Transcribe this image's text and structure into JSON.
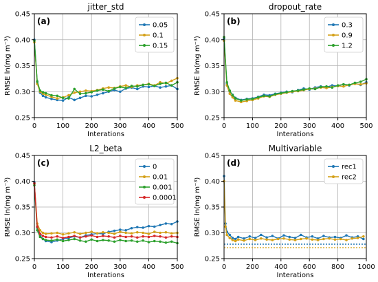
{
  "chart_data": [
    {
      "type": "line",
      "title": "jitter_std",
      "panel_label": "(a)",
      "xlabel": "Interations",
      "ylabel": "RMSE ln(mg m⁻³)",
      "xlim": [
        0,
        500
      ],
      "ylim": [
        0.25,
        0.45
      ],
      "xticks": [
        0,
        100,
        200,
        300,
        400,
        500
      ],
      "yticks": [
        0.25,
        0.3,
        0.35,
        0.4,
        0.45
      ],
      "grid": true,
      "legend_position": "top-right",
      "series": [
        {
          "name": "0.05",
          "color": "#1f77b4",
          "x": [
            0,
            10,
            20,
            30,
            40,
            60,
            80,
            100,
            120,
            140,
            160,
            180,
            200,
            220,
            240,
            260,
            280,
            300,
            320,
            340,
            360,
            380,
            400,
            420,
            440,
            460,
            480,
            500
          ],
          "y": [
            0.4,
            0.318,
            0.298,
            0.292,
            0.289,
            0.286,
            0.284,
            0.283,
            0.289,
            0.284,
            0.288,
            0.292,
            0.291,
            0.294,
            0.297,
            0.3,
            0.303,
            0.3,
            0.306,
            0.308,
            0.305,
            0.31,
            0.309,
            0.311,
            0.308,
            0.31,
            0.312,
            0.305
          ]
        },
        {
          "name": "0.1",
          "color": "#d4a017",
          "x": [
            0,
            10,
            20,
            30,
            40,
            60,
            80,
            100,
            120,
            140,
            160,
            180,
            200,
            220,
            240,
            260,
            280,
            300,
            320,
            340,
            360,
            380,
            400,
            420,
            440,
            460,
            480,
            500
          ],
          "y": [
            0.395,
            0.315,
            0.3,
            0.296,
            0.294,
            0.29,
            0.287,
            0.289,
            0.293,
            0.298,
            0.3,
            0.302,
            0.301,
            0.303,
            0.306,
            0.308,
            0.307,
            0.31,
            0.312,
            0.309,
            0.312,
            0.313,
            0.315,
            0.312,
            0.318,
            0.316,
            0.321,
            0.326
          ]
        },
        {
          "name": "0.15",
          "color": "#2ca02c",
          "x": [
            0,
            10,
            20,
            30,
            40,
            60,
            80,
            100,
            120,
            140,
            160,
            180,
            200,
            220,
            240,
            260,
            280,
            300,
            320,
            340,
            360,
            380,
            400,
            420,
            440,
            460,
            480,
            500
          ],
          "y": [
            0.398,
            0.32,
            0.302,
            0.299,
            0.297,
            0.293,
            0.292,
            0.288,
            0.287,
            0.305,
            0.296,
            0.297,
            0.299,
            0.302,
            0.304,
            0.301,
            0.306,
            0.309,
            0.307,
            0.311,
            0.31,
            0.313,
            0.314,
            0.311,
            0.315,
            0.317,
            0.312,
            0.318
          ]
        }
      ]
    },
    {
      "type": "line",
      "title": "dropout_rate",
      "panel_label": "(b)",
      "xlabel": "Interations",
      "ylabel": "RMSE ln(mg m⁻³)",
      "xlim": [
        0,
        500
      ],
      "ylim": [
        0.25,
        0.45
      ],
      "xticks": [
        0,
        100,
        200,
        300,
        400,
        500
      ],
      "yticks": [
        0.25,
        0.3,
        0.35,
        0.4,
        0.45
      ],
      "grid": true,
      "legend_position": "top-right",
      "series": [
        {
          "name": "0.3",
          "color": "#1f77b4",
          "x": [
            0,
            10,
            20,
            30,
            40,
            60,
            80,
            100,
            120,
            140,
            160,
            180,
            200,
            220,
            240,
            260,
            280,
            300,
            320,
            340,
            360,
            380,
            400,
            420,
            440,
            460,
            480,
            500
          ],
          "y": [
            0.402,
            0.315,
            0.3,
            0.294,
            0.288,
            0.284,
            0.286,
            0.287,
            0.29,
            0.294,
            0.293,
            0.296,
            0.298,
            0.3,
            0.299,
            0.303,
            0.306,
            0.304,
            0.308,
            0.31,
            0.309,
            0.312,
            0.311,
            0.314,
            0.312,
            0.316,
            0.313,
            0.318
          ]
        },
        {
          "name": "0.9",
          "color": "#d4a017",
          "x": [
            0,
            10,
            20,
            30,
            40,
            60,
            80,
            100,
            120,
            140,
            160,
            180,
            200,
            220,
            240,
            260,
            280,
            300,
            320,
            340,
            360,
            380,
            400,
            420,
            440,
            460,
            480,
            500
          ],
          "y": [
            0.398,
            0.312,
            0.296,
            0.289,
            0.283,
            0.28,
            0.282,
            0.284,
            0.287,
            0.291,
            0.29,
            0.294,
            0.296,
            0.298,
            0.3,
            0.301,
            0.303,
            0.305,
            0.306,
            0.308,
            0.307,
            0.309,
            0.311,
            0.31,
            0.313,
            0.315,
            0.314,
            0.316
          ]
        },
        {
          "name": "1.2",
          "color": "#2ca02c",
          "x": [
            0,
            10,
            20,
            30,
            40,
            60,
            80,
            100,
            120,
            140,
            160,
            180,
            200,
            220,
            240,
            260,
            280,
            300,
            320,
            340,
            360,
            380,
            400,
            420,
            440,
            460,
            480,
            500
          ],
          "y": [
            0.405,
            0.318,
            0.302,
            0.293,
            0.287,
            0.283,
            0.285,
            0.286,
            0.289,
            0.292,
            0.291,
            0.295,
            0.297,
            0.299,
            0.301,
            0.302,
            0.304,
            0.306,
            0.305,
            0.309,
            0.31,
            0.308,
            0.312,
            0.314,
            0.313,
            0.317,
            0.319,
            0.324
          ]
        }
      ]
    },
    {
      "type": "line",
      "title": "L2_beta",
      "panel_label": "(c)",
      "xlabel": "Interations",
      "ylabel": "RMSE ln(mg m⁻³)",
      "xlim": [
        0,
        500
      ],
      "ylim": [
        0.25,
        0.45
      ],
      "xticks": [
        0,
        100,
        200,
        300,
        400,
        500
      ],
      "yticks": [
        0.25,
        0.3,
        0.35,
        0.4,
        0.45
      ],
      "grid": true,
      "legend_position": "top-right",
      "series": [
        {
          "name": "0",
          "color": "#1f77b4",
          "x": [
            0,
            10,
            20,
            30,
            40,
            60,
            80,
            100,
            120,
            140,
            160,
            180,
            200,
            220,
            240,
            260,
            280,
            300,
            320,
            340,
            360,
            380,
            400,
            420,
            440,
            460,
            480,
            500
          ],
          "y": [
            0.398,
            0.31,
            0.295,
            0.288,
            0.284,
            0.282,
            0.285,
            0.288,
            0.29,
            0.293,
            0.291,
            0.295,
            0.297,
            0.299,
            0.298,
            0.302,
            0.304,
            0.306,
            0.305,
            0.309,
            0.311,
            0.31,
            0.313,
            0.312,
            0.315,
            0.318,
            0.317,
            0.322
          ]
        },
        {
          "name": "0.01",
          "color": "#d4a017",
          "x": [
            0,
            10,
            20,
            30,
            40,
            60,
            80,
            100,
            120,
            140,
            160,
            180,
            200,
            220,
            240,
            260,
            280,
            300,
            320,
            340,
            360,
            380,
            400,
            420,
            440,
            460,
            480,
            500
          ],
          "y": [
            0.395,
            0.318,
            0.305,
            0.3,
            0.298,
            0.299,
            0.3,
            0.297,
            0.299,
            0.301,
            0.298,
            0.3,
            0.302,
            0.299,
            0.301,
            0.3,
            0.298,
            0.302,
            0.3,
            0.299,
            0.301,
            0.3,
            0.298,
            0.302,
            0.3,
            0.301,
            0.299,
            0.3
          ]
        },
        {
          "name": "0.001",
          "color": "#2ca02c",
          "x": [
            0,
            10,
            20,
            30,
            40,
            60,
            80,
            100,
            120,
            140,
            160,
            180,
            200,
            220,
            240,
            260,
            280,
            300,
            320,
            340,
            360,
            380,
            400,
            420,
            440,
            460,
            480,
            500
          ],
          "y": [
            0.392,
            0.305,
            0.292,
            0.288,
            0.286,
            0.285,
            0.287,
            0.284,
            0.286,
            0.288,
            0.285,
            0.283,
            0.287,
            0.284,
            0.286,
            0.285,
            0.283,
            0.286,
            0.284,
            0.285,
            0.283,
            0.285,
            0.282,
            0.284,
            0.283,
            0.281,
            0.283,
            0.28
          ]
        },
        {
          "name": "0.0001",
          "color": "#d62728",
          "x": [
            0,
            10,
            20,
            30,
            40,
            60,
            80,
            100,
            120,
            140,
            160,
            180,
            200,
            220,
            240,
            260,
            280,
            300,
            320,
            340,
            360,
            380,
            400,
            420,
            440,
            460,
            480,
            500
          ],
          "y": [
            0.396,
            0.312,
            0.298,
            0.294,
            0.292,
            0.291,
            0.293,
            0.29,
            0.292,
            0.294,
            0.291,
            0.293,
            0.295,
            0.292,
            0.294,
            0.293,
            0.291,
            0.294,
            0.292,
            0.293,
            0.291,
            0.293,
            0.292,
            0.294,
            0.293,
            0.291,
            0.293,
            0.292
          ]
        }
      ]
    },
    {
      "type": "line",
      "title": "Multivariable",
      "panel_label": "(d)",
      "xlabel": "Interations",
      "ylabel": "RMSE ln(mg m⁻³)",
      "xlim": [
        0,
        1000
      ],
      "ylim": [
        0.25,
        0.45
      ],
      "xticks": [
        0,
        200,
        400,
        600,
        800,
        1000
      ],
      "yticks": [
        0.25,
        0.3,
        0.35,
        0.4,
        0.45
      ],
      "grid": true,
      "legend_position": "top-right",
      "series": [
        {
          "name": "rec1",
          "color": "#1f77b4",
          "x": [
            0,
            10,
            20,
            40,
            60,
            80,
            100,
            140,
            180,
            220,
            260,
            300,
            340,
            380,
            420,
            460,
            500,
            540,
            580,
            620,
            660,
            700,
            740,
            780,
            820,
            860,
            900,
            940,
            980
          ],
          "y": [
            0.41,
            0.318,
            0.302,
            0.296,
            0.29,
            0.288,
            0.292,
            0.289,
            0.293,
            0.29,
            0.296,
            0.291,
            0.294,
            0.289,
            0.295,
            0.292,
            0.29,
            0.296,
            0.291,
            0.293,
            0.289,
            0.294,
            0.291,
            0.292,
            0.29,
            0.295,
            0.291,
            0.293,
            0.288
          ]
        },
        {
          "name": "rec2",
          "color": "#d4a017",
          "x": [
            0,
            10,
            20,
            40,
            60,
            80,
            100,
            140,
            180,
            220,
            260,
            300,
            340,
            380,
            420,
            460,
            500,
            540,
            580,
            620,
            660,
            700,
            740,
            780,
            820,
            860,
            900,
            940,
            980
          ],
          "y": [
            0.4,
            0.312,
            0.296,
            0.29,
            0.286,
            0.284,
            0.287,
            0.285,
            0.288,
            0.286,
            0.289,
            0.287,
            0.286,
            0.288,
            0.289,
            0.287,
            0.286,
            0.288,
            0.289,
            0.287,
            0.286,
            0.288,
            0.289,
            0.287,
            0.288,
            0.286,
            0.289,
            0.29,
            0.293
          ]
        }
      ],
      "reference_lines": [
        {
          "y": 0.278,
          "color": "#1f77b4",
          "style": "dotted"
        },
        {
          "y": 0.271,
          "color": "#d4a017",
          "style": "dotted"
        }
      ]
    }
  ]
}
